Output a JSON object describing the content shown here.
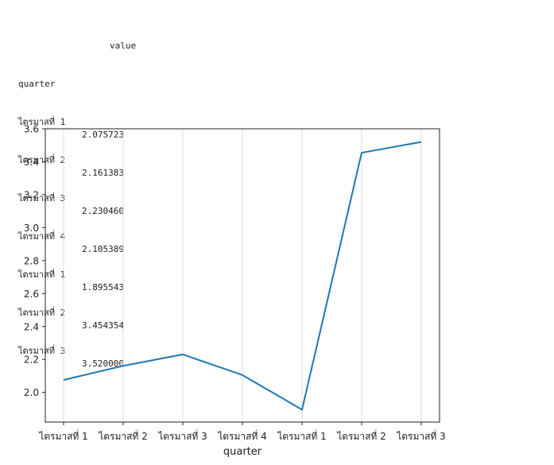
{
  "dataframe": {
    "column_header": "value",
    "index_name": "quarter",
    "rows": [
      {
        "quarter": "ไตรมาสที่ 1",
        "value": "2.075723"
      },
      {
        "quarter": "ไตรมาสที่ 2",
        "value": "2.161383"
      },
      {
        "quarter": "ไตรมาสที่ 3",
        "value": "2.230460"
      },
      {
        "quarter": "ไตรมาสที่ 4",
        "value": "2.105389"
      },
      {
        "quarter": "ไตรมาสที่ 1",
        "value": "1.895543"
      },
      {
        "quarter": "ไตรมาสที่ 2",
        "value": "3.454354"
      },
      {
        "quarter": "ไตรมาสที่ 3",
        "value": "3.520000"
      }
    ]
  },
  "chart_data": {
    "type": "line",
    "categories": [
      "ไตรมาสที่ 1",
      "ไตรมาสที่ 2",
      "ไตรมาสที่ 3",
      "ไตรมาสที่ 4",
      "ไตรมาสที่ 1",
      "ไตรมาสที่ 2",
      "ไตรมาสที่ 3"
    ],
    "values": [
      2.075723,
      2.161383,
      2.23046,
      2.105389,
      1.895543,
      3.454354,
      3.52
    ],
    "xlabel": "quarter",
    "ylabel": "",
    "ylim": [
      1.82,
      3.6
    ],
    "yticks": [
      "2.0",
      "2.2",
      "2.4",
      "2.6",
      "2.8",
      "3.0",
      "3.2",
      "3.4",
      "3.6"
    ],
    "grid": "vertical",
    "line_color": "#1f77b4"
  }
}
